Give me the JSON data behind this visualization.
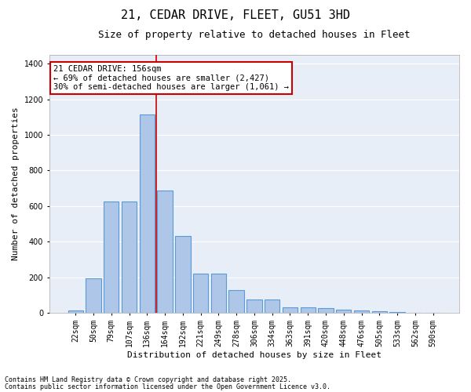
{
  "title1": "21, CEDAR DRIVE, FLEET, GU51 3HD",
  "title2": "Size of property relative to detached houses in Fleet",
  "xlabel": "Distribution of detached houses by size in Fleet",
  "ylabel": "Number of detached properties",
  "categories": [
    "22sqm",
    "50sqm",
    "79sqm",
    "107sqm",
    "136sqm",
    "164sqm",
    "192sqm",
    "221sqm",
    "249sqm",
    "278sqm",
    "306sqm",
    "334sqm",
    "363sqm",
    "391sqm",
    "420sqm",
    "448sqm",
    "476sqm",
    "505sqm",
    "533sqm",
    "562sqm",
    "590sqm"
  ],
  "values": [
    15,
    195,
    625,
    625,
    1115,
    685,
    430,
    220,
    220,
    130,
    75,
    75,
    32,
    32,
    28,
    18,
    12,
    8,
    3,
    0,
    0
  ],
  "bar_color": "#aec6e8",
  "bar_edge_color": "#5b9bd5",
  "bar_edge_width": 0.8,
  "bg_color": "#e8eef8",
  "grid_color": "#ffffff",
  "annotation_text": "21 CEDAR DRIVE: 156sqm\n← 69% of detached houses are smaller (2,427)\n30% of semi-detached houses are larger (1,061) →",
  "annotation_box_color": "#cc0000",
  "vline_color": "#cc0000",
  "vline_pos": 4.5,
  "ylim": [
    0,
    1450
  ],
  "yticks": [
    0,
    200,
    400,
    600,
    800,
    1000,
    1200,
    1400
  ],
  "footnote1": "Contains HM Land Registry data © Crown copyright and database right 2025.",
  "footnote2": "Contains public sector information licensed under the Open Government Licence v3.0.",
  "title_fontsize": 11,
  "subtitle_fontsize": 9,
  "label_fontsize": 8,
  "tick_fontsize": 7,
  "annot_fontsize": 7.5
}
